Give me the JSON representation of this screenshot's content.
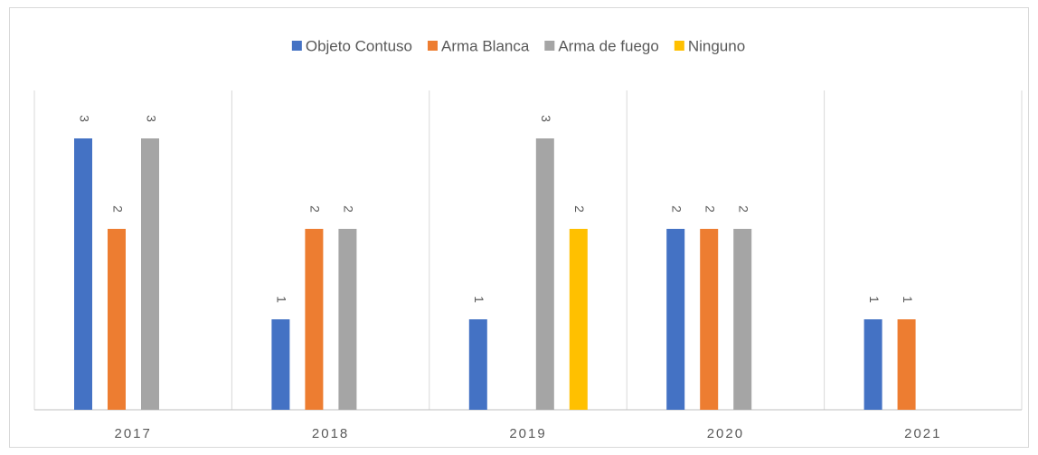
{
  "chart_data": {
    "type": "bar",
    "categories": [
      "2017",
      "2018",
      "2019",
      "2020",
      "2021"
    ],
    "series": [
      {
        "name": "Objeto Contuso",
        "color": "#4472c4",
        "values": [
          3,
          1,
          1,
          2,
          1
        ]
      },
      {
        "name": "Arma Blanca",
        "color": "#ed7d31",
        "values": [
          2,
          2,
          null,
          2,
          1
        ]
      },
      {
        "name": "Arma de fuego",
        "color": "#a5a5a5",
        "values": [
          3,
          2,
          3,
          2,
          null
        ]
      },
      {
        "name": "Ninguno",
        "color": "#ffc000",
        "values": [
          null,
          null,
          2,
          null,
          null
        ]
      }
    ]
  }
}
